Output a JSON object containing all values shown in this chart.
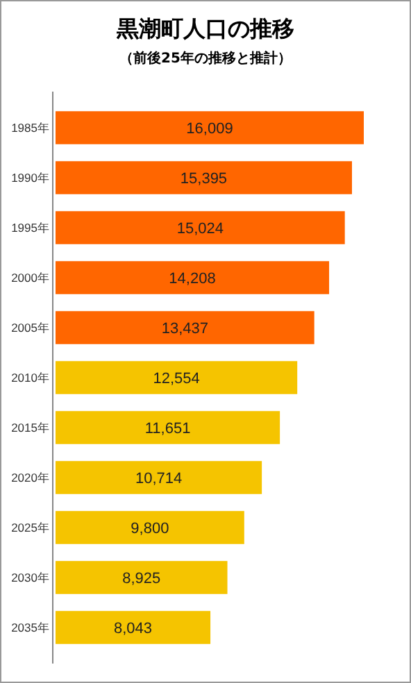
{
  "chart_data": {
    "type": "bar",
    "orientation": "horizontal",
    "title": "黒潮町人口の推移",
    "subtitle": "（前後25年の推移と推計）",
    "categories": [
      "1985年",
      "1990年",
      "1995年",
      "2000年",
      "2005年",
      "2010年",
      "2015年",
      "2020年",
      "2025年",
      "2030年",
      "2035年"
    ],
    "values": [
      16009,
      15395,
      15024,
      14208,
      13437,
      12554,
      11651,
      10714,
      9800,
      8925,
      8043
    ],
    "colors": [
      "#ff6600",
      "#ff6600",
      "#ff6600",
      "#ff6600",
      "#ff6600",
      "#f5c400",
      "#f5c400",
      "#f5c400",
      "#f5c400",
      "#f5c400",
      "#f5c400"
    ],
    "value_labels": [
      "16,009",
      "15,395",
      "15,024",
      "14,208",
      "13,437",
      "12,554",
      "11,651",
      "10,714",
      "9,800",
      "8,925",
      "8,043"
    ]
  }
}
